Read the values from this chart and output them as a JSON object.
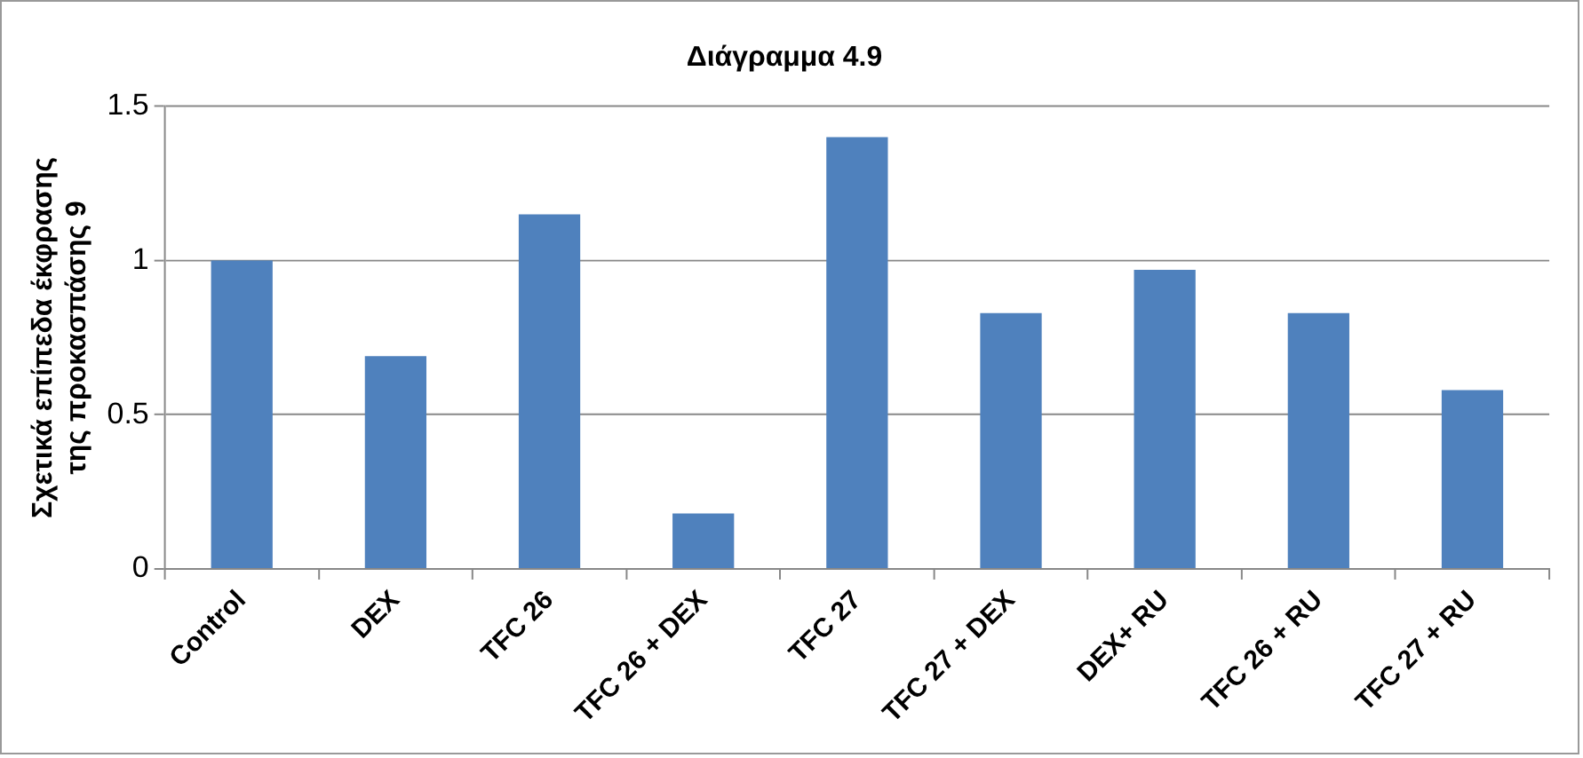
{
  "chart_data": {
    "type": "bar",
    "title": "Διάγραμμα 4.9",
    "ylabel": "Σχετικά επίπεδα έκφρασης\nτης προκασπάσης 9",
    "categories": [
      "Control",
      "DEX",
      "TFC 26",
      "TFC 26 + DEX",
      "TFC 27",
      "TFC 27 + DEX",
      "DEX+ RU",
      "TFC 26 + RU",
      "TFC 27 + RU"
    ],
    "values": [
      1.0,
      0.69,
      1.15,
      0.18,
      1.4,
      0.83,
      0.97,
      0.83,
      0.58
    ],
    "color": "#4f81bd",
    "ylim": [
      0,
      1.5
    ],
    "yticks": [
      0,
      0.5,
      1,
      1.5
    ],
    "grid": "y",
    "legend": false
  }
}
